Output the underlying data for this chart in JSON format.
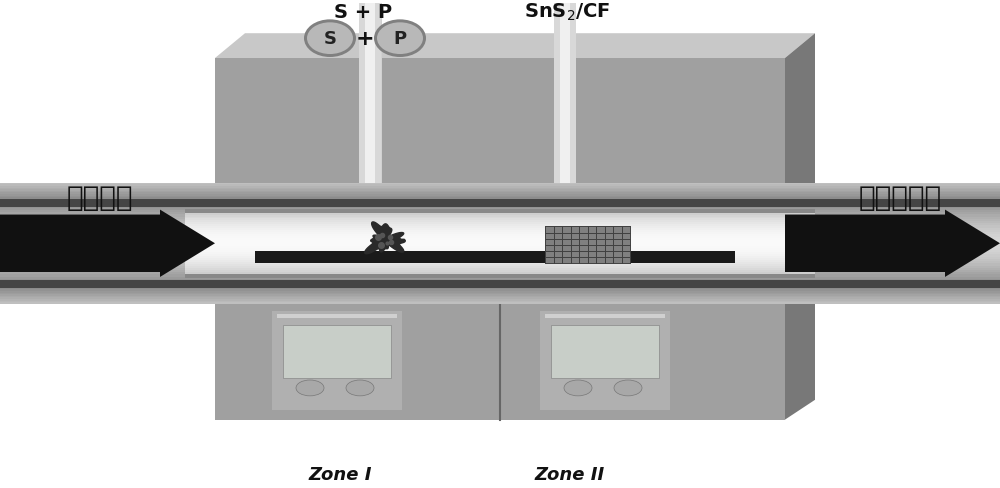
{
  "bg_color": "#ffffff",
  "c_furnace_front": "#a0a0a0",
  "c_furnace_top": "#c0c0c0",
  "c_furnace_right": "#787878",
  "c_furnace_dark": "#606060",
  "c_tube_outer": "#888888",
  "c_tube_inner_light": "#f0f0f0",
  "c_pipe_light": "#e0e0e0",
  "c_pipe_mid": "#c8c8c8",
  "c_black": "#111111",
  "text_left": "高纯氮气",
  "text_right": "真空泵减压",
  "label_sp": "S + P",
  "label_sns2": "SnS₂/CF",
  "label_zone1": "Zone I",
  "label_zone2": "Zone II",
  "figsize": [
    10.0,
    4.89
  ],
  "dpi": 100
}
